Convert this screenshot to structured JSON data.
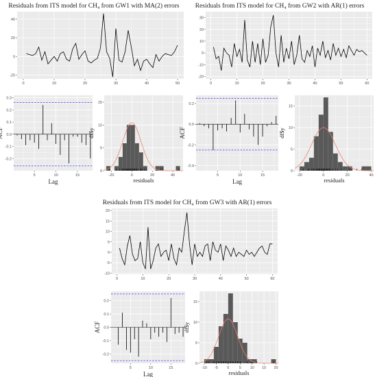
{
  "chart_data": [
    {
      "id": "gw1",
      "title": "Residuals from ITS model for CH₄ from GW1 with MA(2) errors",
      "time_series": {
        "type": "line",
        "x": [
          1,
          2,
          3,
          4,
          5,
          6,
          7,
          8,
          9,
          10,
          11,
          12,
          13,
          14,
          15,
          16,
          17,
          18,
          19,
          20,
          21,
          22,
          23,
          24,
          25,
          26,
          27,
          28,
          29,
          30,
          31,
          32,
          33,
          34,
          35,
          36,
          37,
          38,
          39,
          40,
          41,
          42,
          43,
          44,
          45,
          46,
          47,
          48,
          49,
          50
        ],
        "y": [
          3,
          2,
          1,
          3,
          10,
          -4,
          5,
          -8,
          -4,
          0,
          -5,
          3,
          5,
          -3,
          -5,
          8,
          14,
          -3,
          2,
          6,
          -5,
          -7,
          -4,
          -2,
          9,
          46,
          5,
          -2,
          -22,
          30,
          -4,
          -6,
          5,
          28,
          10,
          -10,
          -3,
          -15,
          -5,
          -3,
          -8,
          -12,
          2,
          -5,
          0,
          3,
          2,
          1,
          5,
          12
        ],
        "xlim": [
          -2,
          52
        ],
        "ylim": [
          -24,
          48
        ],
        "xticks": [
          0,
          10,
          20,
          30,
          40,
          50
        ],
        "yticks": [
          -20,
          0,
          20,
          40
        ]
      },
      "acf": {
        "type": "bar",
        "xlabel": "Lag",
        "ylabel": "ACF",
        "lags": [
          1,
          2,
          3,
          4,
          5,
          6,
          7,
          8,
          9,
          10,
          11,
          12,
          13,
          14,
          15,
          16,
          17,
          18
        ],
        "values": [
          -0.01,
          -0.04,
          -0.09,
          -0.05,
          -0.07,
          -0.12,
          0.24,
          -0.05,
          0.09,
          -0.08,
          -0.17,
          -0.05,
          -0.24,
          -0.02,
          -0.02,
          -0.07,
          -0.09,
          -0.2
        ],
        "ci": 0.26,
        "xlim": [
          0.2,
          18.5
        ],
        "ylim": [
          -0.3,
          0.32
        ],
        "xticks": [
          5,
          10,
          15
        ],
        "yticks": [
          -0.2,
          -0.1,
          0.0,
          0.1,
          0.2,
          0.3
        ]
      },
      "histogram": {
        "type": "bar",
        "xlabel": "residuals",
        "ylabel": "df$y",
        "bin_width": 4,
        "bins": [
          -23,
          -19,
          -15,
          -11,
          -7,
          -3,
          1,
          5,
          9,
          13,
          17,
          21,
          25,
          29,
          33,
          37,
          41,
          45
        ],
        "counts": [
          1,
          0,
          1,
          3,
          6,
          10,
          10,
          6,
          4,
          1,
          0,
          0,
          1,
          1,
          0,
          0,
          0,
          1
        ],
        "rug": [
          -22,
          -15,
          -12,
          -10,
          -9,
          -8,
          -7,
          -6,
          -5,
          -5,
          -4,
          -4,
          -3,
          -3,
          -2,
          -2,
          -1,
          0,
          0,
          1,
          1,
          2,
          2,
          2,
          3,
          3,
          4,
          5,
          5,
          5,
          6,
          8,
          9,
          10,
          10,
          12,
          14,
          28,
          30,
          46
        ],
        "normal_curve": {
          "mean": 0,
          "sd": 9,
          "peak": 10.5
        },
        "xlim": [
          -27,
          50
        ],
        "ylim": [
          0,
          16.5
        ],
        "xticks": [
          -20,
          0,
          20,
          40
        ],
        "yticks": [
          0,
          5,
          10,
          15
        ]
      }
    },
    {
      "id": "gw2",
      "title": "Residuals from ITS model for CH₄ from GW2 with AR(1) errors",
      "time_series": {
        "type": "line",
        "x": [
          1,
          2,
          3,
          4,
          5,
          6,
          7,
          8,
          9,
          10,
          11,
          12,
          13,
          14,
          15,
          16,
          17,
          18,
          19,
          20,
          21,
          22,
          23,
          24,
          25,
          26,
          27,
          28,
          29,
          30,
          31,
          32,
          33,
          34,
          35,
          36,
          37,
          38,
          39,
          40,
          41,
          42,
          43,
          44,
          45,
          46,
          47,
          48,
          49,
          50,
          51,
          52,
          53,
          54,
          55,
          56,
          57,
          58,
          59,
          60
        ],
        "y": [
          5,
          -5,
          -3,
          -15,
          4,
          0,
          -2,
          -12,
          8,
          -3,
          3,
          -8,
          28,
          -6,
          -12,
          10,
          -8,
          8,
          -10,
          12,
          -8,
          -2,
          22,
          32,
          0,
          -12,
          15,
          -8,
          4,
          -5,
          10,
          -10,
          -2,
          15,
          -5,
          -8,
          2,
          -3,
          6,
          -12,
          4,
          -2,
          10,
          -4,
          2,
          -6,
          8,
          -2,
          4,
          -3,
          3,
          -4,
          6,
          2,
          -2,
          3,
          1,
          2,
          0,
          -2
        ],
        "xlim": [
          -2,
          62
        ],
        "ylim": [
          -22,
          35
        ],
        "xticks": [
          0,
          10,
          20,
          30,
          40,
          50,
          60
        ],
        "yticks": [
          -20,
          -10,
          0,
          10,
          20,
          30
        ]
      },
      "acf": {
        "type": "bar",
        "xlabel": "Lag",
        "ylabel": "ACF",
        "lags": [
          1,
          2,
          3,
          4,
          5,
          6,
          7,
          8,
          9,
          10,
          11,
          12,
          13,
          14,
          15,
          16,
          17,
          18
        ],
        "values": [
          0.01,
          -0.02,
          -0.04,
          -0.25,
          -0.06,
          -0.04,
          -0.07,
          0.06,
          0.23,
          -0.08,
          0.1,
          -0.05,
          -0.12,
          -0.2,
          -0.12,
          -0.02,
          0.02,
          0.08
        ],
        "ci": 0.25,
        "xlim": [
          0.2,
          18.5
        ],
        "ylim": [
          -0.45,
          0.28
        ],
        "xticks": [
          5,
          10,
          15
        ],
        "yticks": [
          -0.4,
          -0.2,
          0.0,
          0.2
        ]
      },
      "histogram": {
        "type": "bar",
        "xlabel": "residuals",
        "ylabel": "df$y",
        "bin_width": 4,
        "bins": [
          -18,
          -14,
          -10,
          -6,
          -2,
          2,
          6,
          10,
          14,
          18,
          22,
          26,
          30,
          34,
          38
        ],
        "counts": [
          1,
          2,
          3,
          8,
          13,
          17,
          9,
          4,
          2,
          1,
          1,
          0,
          0,
          1,
          1
        ],
        "rug": [
          -17,
          -13,
          -12,
          -10,
          -9,
          -8,
          -7,
          -6,
          -5,
          -5,
          -4,
          -4,
          -3,
          -3,
          -3,
          -2,
          -2,
          -2,
          -1,
          -1,
          0,
          0,
          0,
          1,
          1,
          1,
          2,
          2,
          2,
          3,
          3,
          3,
          4,
          4,
          5,
          5,
          6,
          8,
          10,
          12,
          15,
          22,
          24,
          28,
          32
        ],
        "normal_curve": {
          "mean": 0,
          "sd": 10,
          "peak": 10
        },
        "xlim": [
          -24,
          42
        ],
        "ylim": [
          0,
          17.5
        ],
        "xticks": [
          -20,
          0,
          20,
          40
        ],
        "yticks": [
          0,
          5,
          10,
          15
        ]
      }
    },
    {
      "id": "gw3",
      "title": "Residuals from ITS model for CH₄ from GW3 with AR(1) errors",
      "time_series": {
        "type": "line",
        "x": [
          1,
          2,
          3,
          4,
          5,
          6,
          7,
          8,
          9,
          10,
          11,
          12,
          13,
          14,
          15,
          16,
          17,
          18,
          19,
          20,
          21,
          22,
          23,
          24,
          25,
          26,
          27,
          28,
          29,
          30,
          31,
          32,
          33,
          34,
          35,
          36,
          37,
          38,
          39,
          40,
          41,
          42,
          43,
          44,
          45,
          46,
          47,
          48,
          49,
          50,
          51,
          52,
          53,
          54,
          55,
          56,
          57,
          58,
          59,
          60
        ],
        "y": [
          2,
          -3,
          -6,
          3,
          8,
          -1,
          -4,
          -3,
          5,
          -5,
          -8,
          12,
          -8,
          -4,
          2,
          4,
          -2,
          0,
          1,
          -4,
          4,
          -3,
          -6,
          2,
          0,
          10,
          19,
          4,
          -6,
          4,
          -2,
          0,
          -2,
          3,
          4,
          -4,
          5,
          1,
          0,
          4,
          -4,
          3,
          1,
          -2,
          2,
          -2,
          0,
          -1,
          -2,
          1,
          -1,
          0,
          -2,
          0,
          2,
          3,
          0,
          -1,
          4,
          4
        ],
        "xlim": [
          -2,
          62
        ],
        "ylim": [
          -10.5,
          21
        ],
        "xticks": [
          0,
          10,
          20,
          30,
          40,
          50,
          60
        ],
        "yticks": [
          -10,
          -5,
          0,
          5,
          10,
          15,
          20
        ]
      },
      "acf": {
        "type": "bar",
        "xlabel": "Lag",
        "ylabel": "ACF",
        "lags": [
          1,
          2,
          3,
          4,
          5,
          6,
          7,
          8,
          9,
          10,
          11,
          12,
          13,
          14,
          15,
          16,
          17,
          18
        ],
        "values": [
          0.0,
          -0.13,
          0.11,
          -0.17,
          -0.19,
          -0.09,
          -0.22,
          0.05,
          0.03,
          -0.09,
          -0.04,
          -0.07,
          -0.04,
          -0.11,
          0.22,
          -0.05,
          -0.04,
          -0.07
        ],
        "ci": 0.25,
        "xlim": [
          0.2,
          18.5
        ],
        "ylim": [
          -0.27,
          0.27
        ],
        "xticks": [
          5,
          10,
          15
        ],
        "yticks": [
          -0.2,
          -0.1,
          0.0,
          0.1,
          0.2
        ]
      },
      "histogram": {
        "type": "bar",
        "xlabel": "residuals",
        "ylabel": "df$y",
        "bin_width": 2,
        "bins": [
          -9,
          -7,
          -5,
          -3,
          -1,
          1,
          3,
          5,
          7,
          9,
          11,
          13,
          15,
          17,
          19
        ],
        "counts": [
          1,
          1,
          4,
          9,
          12,
          17,
          10,
          6,
          5,
          1,
          1,
          0,
          0,
          0,
          1
        ],
        "rug": [
          -9,
          -8,
          -6,
          -6,
          -5,
          -4,
          -4,
          -4,
          -3,
          -3,
          -3,
          -2,
          -2,
          -2,
          -2,
          -2,
          -1,
          -1,
          -1,
          0,
          0,
          0,
          0,
          0,
          1,
          1,
          1,
          1,
          2,
          2,
          2,
          2,
          3,
          3,
          3,
          4,
          4,
          4,
          4,
          4,
          5,
          5,
          8,
          10,
          12,
          19
        ],
        "normal_curve": {
          "mean": 0,
          "sd": 4,
          "peak": 10.8
        },
        "xlim": [
          -12,
          21
        ],
        "ylim": [
          0,
          17.5
        ],
        "xticks": [
          -10,
          -5,
          0,
          5,
          10,
          15,
          20
        ],
        "yticks": [
          0,
          5,
          10,
          15
        ]
      }
    }
  ]
}
